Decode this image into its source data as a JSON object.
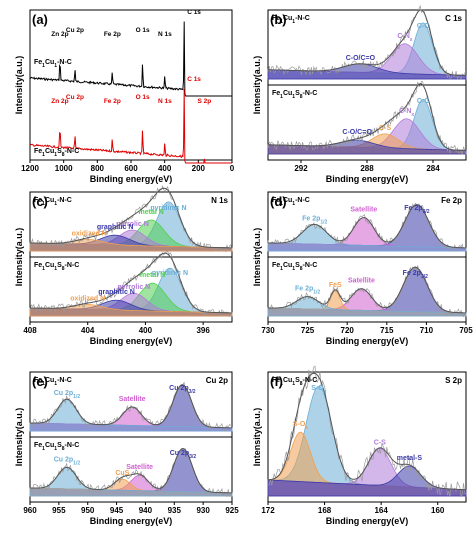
{
  "colors": {
    "raw": "#9a9a9a",
    "envelope": "#555555",
    "survey_top": "#000000",
    "survey_bottom": "#e00000"
  },
  "chart_data": [
    {
      "id": "a",
      "panel_label": "(a)",
      "type": "line",
      "xlabel": "Binding energy(eV)",
      "ylabel": "Intensity(a.u.)",
      "xlim": [
        1200,
        0
      ],
      "xticks": [
        "1200",
        "1000",
        "800",
        "600",
        "400",
        "200",
        "0"
      ],
      "samples": [
        {
          "name": "Fe1Cu1-N-C",
          "label_main": "Fe",
          "label_parts": [
            [
              "Fe",
              ""
            ],
            [
              "1",
              "sub"
            ],
            [
              "Cu",
              ""
            ],
            [
              "1",
              "sub"
            ],
            [
              "-N-C",
              ""
            ]
          ],
          "color": "#000000",
          "peaks": [
            {
              "text": "Zn 2p",
              "x": 1022
            },
            {
              "text": "Cu 2p",
              "x": 933
            },
            {
              "text": "Fe 2p",
              "x": 711
            },
            {
              "text": "O 1s",
              "x": 531
            },
            {
              "text": "N 1s",
              "x": 399
            },
            {
              "text": "C 1s",
              "x": 284
            }
          ]
        },
        {
          "name": "Fe1Cu1S8-N-C",
          "label_parts": [
            [
              "Fe",
              ""
            ],
            [
              "1",
              "sub"
            ],
            [
              "Cu",
              ""
            ],
            [
              "1",
              "sub"
            ],
            [
              "S",
              ""
            ],
            [
              "8",
              "sub"
            ],
            [
              "-N-C",
              ""
            ]
          ],
          "color": "#e00000",
          "peaks": [
            {
              "text": "Zn 2p",
              "x": 1022
            },
            {
              "text": "Cu 2p",
              "x": 933
            },
            {
              "text": "Fe 2p",
              "x": 711
            },
            {
              "text": "O 1s",
              "x": 531
            },
            {
              "text": "N 1s",
              "x": 399
            },
            {
              "text": "C 1s",
              "x": 284
            },
            {
              "text": "S 2p",
              "x": 164
            }
          ]
        }
      ]
    },
    {
      "id": "b",
      "panel_label": "(b)",
      "core": "C 1s",
      "type": "line",
      "xlabel": "Binding energy(eV)",
      "ylabel": "Intensity(a.u.)",
      "xlim": [
        294,
        282
      ],
      "xticks": [
        292,
        288,
        284
      ],
      "samples": [
        {
          "label_parts": [
            [
              "Fe",
              ""
            ],
            [
              "1",
              "sub"
            ],
            [
              "Cu",
              ""
            ],
            [
              "1",
              "sub"
            ],
            [
              "-N-C",
              ""
            ]
          ],
          "components": [
            {
              "label": "C-C",
              "center": 284.6,
              "height": 0.72,
              "width": 0.55,
              "color": "#6baed6"
            },
            {
              "label": "C-N",
              "sub": "x",
              "center": 285.7,
              "height": 0.42,
              "width": 0.8,
              "color": "#b07cd8"
            },
            {
              "label": "C-O/C=O",
              "center": 288.4,
              "height": 0.12,
              "width": 1.0,
              "color": "#3a3aa8"
            }
          ]
        },
        {
          "label_parts": [
            [
              "Fe",
              ""
            ],
            [
              "1",
              "sub"
            ],
            [
              "Cu",
              ""
            ],
            [
              "1",
              "sub"
            ],
            [
              "S",
              ""
            ],
            [
              "8",
              "sub"
            ],
            [
              "-N-C",
              ""
            ]
          ],
          "components": [
            {
              "label": "C-C",
              "center": 284.6,
              "height": 0.7,
              "width": 0.55,
              "color": "#6baed6"
            },
            {
              "label": "C-N",
              "sub": "x",
              "center": 285.6,
              "height": 0.42,
              "width": 0.8,
              "color": "#b07cd8"
            },
            {
              "label": "C-S",
              "center": 286.9,
              "height": 0.2,
              "width": 0.8,
              "color": "#f0a050"
            },
            {
              "label": "C-O/C=O",
              "center": 288.6,
              "height": 0.1,
              "width": 1.0,
              "color": "#3a3aa8"
            }
          ]
        }
      ]
    },
    {
      "id": "c",
      "panel_label": "(c)",
      "core": "N 1s",
      "type": "line",
      "xlabel": "Binding energy(eV)",
      "ylabel": "Intensity(a.u.)",
      "xlim": [
        408,
        394
      ],
      "xticks": [
        408,
        404,
        400,
        396
      ],
      "samples": [
        {
          "label_parts": [
            [
              "Fe",
              ""
            ],
            [
              "1",
              "sub"
            ],
            [
              "Cu",
              ""
            ],
            [
              "1",
              "sub"
            ],
            [
              "-N-C",
              ""
            ]
          ],
          "components": [
            {
              "label": "pyridinic N",
              "center": 398.4,
              "height": 0.72,
              "width": 0.8,
              "color": "#6baed6"
            },
            {
              "label": "metal N",
              "center": 399.6,
              "height": 0.42,
              "width": 0.9,
              "color": "#50d050"
            },
            {
              "label": "pyrrolic N",
              "center": 400.9,
              "height": 0.25,
              "width": 0.9,
              "color": "#b07cd8"
            },
            {
              "label": "graphitic N",
              "center": 402.1,
              "height": 0.16,
              "width": 1.0,
              "color": "#3a3aa8"
            },
            {
              "label": "oxidized N",
              "center": 403.9,
              "height": 0.08,
              "width": 1.0,
              "color": "#f0a050"
            }
          ]
        },
        {
          "label_parts": [
            [
              "Fe",
              ""
            ],
            [
              "1",
              "sub"
            ],
            [
              "Cu",
              ""
            ],
            [
              "1",
              "sub"
            ],
            [
              "S",
              ""
            ],
            [
              "8",
              "sub"
            ],
            [
              "-N-C",
              ""
            ]
          ],
          "components": [
            {
              "label": "pyridinic N",
              "center": 398.3,
              "height": 0.7,
              "width": 0.8,
              "color": "#6baed6"
            },
            {
              "label": "metal N",
              "center": 399.5,
              "height": 0.45,
              "width": 0.9,
              "color": "#50d050"
            },
            {
              "label": "pyrrolic N",
              "center": 400.8,
              "height": 0.28,
              "width": 0.9,
              "color": "#b07cd8"
            },
            {
              "label": "graphitic N",
              "center": 402.0,
              "height": 0.16,
              "width": 1.0,
              "color": "#3a3aa8"
            },
            {
              "label": "oxidized N",
              "center": 404.0,
              "height": 0.08,
              "width": 1.0,
              "color": "#f0a050"
            }
          ]
        }
      ]
    },
    {
      "id": "d",
      "panel_label": "(d)",
      "core": "Fe 2p",
      "type": "line",
      "xlabel": "Binding energy(eV)",
      "ylabel": "Intensity(a.u.)",
      "xlim": [
        730,
        705
      ],
      "xticks": [
        730,
        725,
        720,
        715,
        710,
        705
      ],
      "samples": [
        {
          "label_parts": [
            [
              "Fe",
              ""
            ],
            [
              "1",
              "sub"
            ],
            [
              "Cu",
              ""
            ],
            [
              "1",
              "sub"
            ],
            [
              "-N-C",
              ""
            ]
          ],
          "components": [
            {
              "label": "Fe 2p",
              "sub": "3/2",
              "center": 711.2,
              "height": 0.68,
              "width": 1.5,
              "color": "#3a3aa8"
            },
            {
              "label": "Satellite",
              "center": 717.9,
              "height": 0.45,
              "width": 1.3,
              "color": "#d060d0"
            },
            {
              "label": "Fe 2p",
              "sub": "1/2",
              "center": 724.1,
              "height": 0.32,
              "width": 1.5,
              "color": "#6baed6"
            }
          ]
        },
        {
          "label_parts": [
            [
              "Fe",
              ""
            ],
            [
              "1",
              "sub"
            ],
            [
              "Cu",
              ""
            ],
            [
              "1",
              "sub"
            ],
            [
              "S",
              ""
            ],
            [
              "8",
              "sub"
            ],
            [
              "-N-C",
              ""
            ]
          ],
          "components": [
            {
              "label": "Fe 2p",
              "sub": "3/2",
              "center": 711.4,
              "height": 0.72,
              "width": 1.5,
              "color": "#3a3aa8"
            },
            {
              "label": "Satellite",
              "center": 718.2,
              "height": 0.35,
              "width": 1.3,
              "color": "#d060d0"
            },
            {
              "label": "FeS",
              "center": 721.5,
              "height": 0.3,
              "width": 0.6,
              "color": "#f0a050"
            },
            {
              "label": "Fe 2p",
              "sub": "1/2",
              "center": 725.0,
              "height": 0.2,
              "width": 1.4,
              "color": "#6baed6"
            }
          ]
        }
      ]
    },
    {
      "id": "e",
      "panel_label": "(e)",
      "core": "Cu 2p",
      "type": "line",
      "xlabel": "Binding energy(eV)",
      "ylabel": "Intensity(a.u.)",
      "xlim": [
        960,
        925
      ],
      "xticks": [
        960,
        955,
        950,
        945,
        940,
        935,
        930,
        925
      ],
      "samples": [
        {
          "label_parts": [
            [
              "Fe",
              ""
            ],
            [
              "1",
              "sub"
            ],
            [
              "Cu",
              ""
            ],
            [
              "1",
              "sub"
            ],
            [
              "-N-C",
              ""
            ]
          ],
          "components": [
            {
              "label": "Cu 2p",
              "sub": "3/2",
              "center": 933.6,
              "height": 0.68,
              "width": 1.6,
              "color": "#3a3aa8"
            },
            {
              "label": "Satellite",
              "center": 942.3,
              "height": 0.3,
              "width": 1.6,
              "color": "#d060d0"
            },
            {
              "label": "Cu 2p",
              "sub": "1/2",
              "center": 953.6,
              "height": 0.4,
              "width": 1.6,
              "color": "#6baed6"
            }
          ]
        },
        {
          "label_parts": [
            [
              "Fe",
              ""
            ],
            [
              "1",
              "sub"
            ],
            [
              "Cu",
              ""
            ],
            [
              "1",
              "sub"
            ],
            [
              "S",
              ""
            ],
            [
              "8",
              "sub"
            ],
            [
              "-N-C",
              ""
            ]
          ],
          "components": [
            {
              "label": "Cu 2p",
              "sub": "3/2",
              "center": 933.5,
              "height": 0.7,
              "width": 1.6,
              "color": "#3a3aa8"
            },
            {
              "label": "Satellite",
              "center": 941.0,
              "height": 0.25,
              "width": 1.5,
              "color": "#d060d0"
            },
            {
              "label": "CuS",
              "center": 944.0,
              "height": 0.18,
              "width": 1.4,
              "color": "#f0a050"
            },
            {
              "label": "Cu 2p",
              "sub": "1/2",
              "center": 953.6,
              "height": 0.35,
              "width": 1.6,
              "color": "#6baed6"
            }
          ]
        }
      ]
    },
    {
      "id": "f",
      "panel_label": "(f)",
      "core": "S 2p",
      "type": "line",
      "xlabel": "Binding energy(eV)",
      "ylabel": "Intensity(a.u.)",
      "xlim": [
        172,
        158
      ],
      "xticks": [
        172,
        168,
        164,
        160
      ],
      "samples": [
        {
          "label_parts": [
            [
              "Fe",
              ""
            ],
            [
              "1",
              "sub"
            ],
            [
              "Cu",
              ""
            ],
            [
              "1",
              "sub"
            ],
            [
              "S",
              ""
            ],
            [
              "8",
              "sub"
            ],
            [
              "-N-C",
              ""
            ]
          ],
          "components": [
            {
              "label": "S-O",
              "sub": "x",
              "center": 168.4,
              "height": 0.78,
              "width": 0.9,
              "color": "#6baed6"
            },
            {
              "label": "S-O",
              "sub": "x",
              "center": 169.7,
              "height": 0.4,
              "width": 0.7,
              "color": "#f0a050"
            },
            {
              "label": "C-S",
              "center": 164.1,
              "height": 0.3,
              "width": 0.8,
              "color": "#b07cd8"
            },
            {
              "label": "metal-S",
              "center": 162.0,
              "height": 0.17,
              "width": 0.8,
              "color": "#3a3aa8"
            }
          ]
        }
      ]
    }
  ]
}
